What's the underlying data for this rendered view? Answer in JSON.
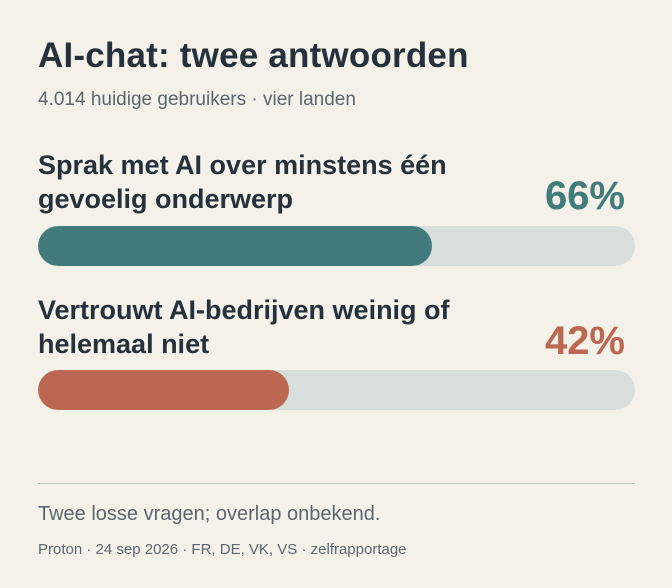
{
  "chart_data": {
    "type": "bar",
    "title": "AI-chat: twee antwoorden",
    "subtitle": "4.014 huidige gebruikers · vier landen",
    "categories": [
      "Sprak met AI over minstens één gevoelig onderwerp",
      "Vertrouwt AI-bedrijven weinig of helemaal niet"
    ],
    "values": [
      66,
      42
    ],
    "value_labels": [
      "66%",
      "42%"
    ],
    "ylim": [
      0,
      100
    ],
    "colors": [
      "#417b7b",
      "#bc6752"
    ],
    "track_color": "#d7dedb",
    "grid": false,
    "legend": "none"
  },
  "stats": [
    {
      "label": "Sprak met AI over minstens één gevoelig onderwerp",
      "value_label": "66%",
      "value": 66,
      "color": "#417b7b"
    },
    {
      "label": "Vertrouwt AI-bedrijven weinig of helemaal niet",
      "value_label": "42%",
      "value": 42,
      "color": "#bc6752"
    }
  ],
  "footer": {
    "note": "Twee losse vragen; overlap onbekend.",
    "source": "Proton · 24 sep 2026 · FR, DE, VK, VS · zelfrapportage"
  }
}
